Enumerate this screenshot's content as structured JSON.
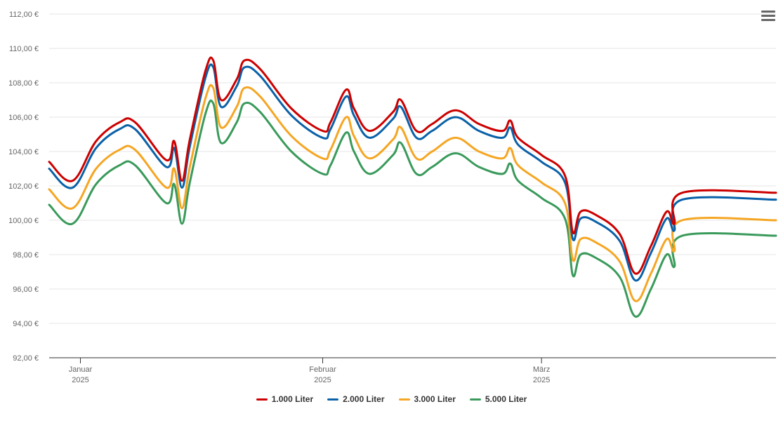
{
  "menu": {
    "icon": "hamburger-menu-icon"
  },
  "chart_data": {
    "type": "line",
    "title": "",
    "xlabel": "",
    "ylabel": "",
    "ylim": [
      92,
      112
    ],
    "y_ticks": [
      "92,00 €",
      "94,00 €",
      "96,00 €",
      "98,00 €",
      "100,00 €",
      "102,00 €",
      "104,00 €",
      "106,00 €",
      "108,00 €",
      "110,00 €",
      "112,00 €"
    ],
    "x_range": [
      "2024-12-28",
      "2025-03-31"
    ],
    "x_ticks": [
      {
        "date": "2025-01-01",
        "label": "Januar",
        "year": "2025"
      },
      {
        "date": "2025-02-01",
        "label": "Februar",
        "year": "2025"
      },
      {
        "date": "2025-03-01",
        "label": "März",
        "year": "2025"
      }
    ],
    "grid": true,
    "legend_position": "bottom-center",
    "series": [
      {
        "name": "1.000 Liter",
        "color": "#cc0000",
        "values": [
          [
            "2024-12-28",
            103.4
          ],
          [
            "2024-12-31",
            102.3
          ],
          [
            "2025-01-03",
            104.6
          ],
          [
            "2025-01-06",
            105.7
          ],
          [
            "2025-01-08",
            105.7
          ],
          [
            "2025-01-12",
            103.5
          ],
          [
            "2025-01-13",
            104.6
          ],
          [
            "2025-01-14",
            102.3
          ],
          [
            "2025-01-15",
            104.7
          ],
          [
            "2025-01-17",
            108.7
          ],
          [
            "2025-01-18",
            109.3
          ],
          [
            "2025-01-19",
            107.0
          ],
          [
            "2025-01-21",
            108.2
          ],
          [
            "2025-01-22",
            109.3
          ],
          [
            "2025-01-24",
            108.8
          ],
          [
            "2025-01-28",
            106.5
          ],
          [
            "2025-02-01",
            105.2
          ],
          [
            "2025-02-02",
            105.7
          ],
          [
            "2025-02-04",
            107.6
          ],
          [
            "2025-02-05",
            106.5
          ],
          [
            "2025-02-07",
            105.2
          ],
          [
            "2025-02-10",
            106.3
          ],
          [
            "2025-02-11",
            107.0
          ],
          [
            "2025-02-13",
            105.2
          ],
          [
            "2025-02-15",
            105.6
          ],
          [
            "2025-02-18",
            106.4
          ],
          [
            "2025-02-21",
            105.6
          ],
          [
            "2025-02-24",
            105.2
          ],
          [
            "2025-02-25",
            105.8
          ],
          [
            "2025-02-26",
            104.8
          ],
          [
            "2025-03-01",
            103.8
          ],
          [
            "2025-03-04",
            102.6
          ],
          [
            "2025-03-05",
            99.3
          ],
          [
            "2025-03-06",
            100.5
          ],
          [
            "2025-03-08",
            100.3
          ],
          [
            "2025-03-11",
            99.2
          ],
          [
            "2025-03-13",
            96.9
          ],
          [
            "2025-03-15",
            98.5
          ],
          [
            "2025-03-17",
            100.5
          ],
          [
            "2025-03-18",
            99.8
          ],
          [
            "2025-03-19",
            101.6
          ],
          [
            "2025-03-31",
            101.6
          ]
        ]
      },
      {
        "name": "2.000 Liter",
        "color": "#0a61a8",
        "values": [
          [
            "2024-12-28",
            103.0
          ],
          [
            "2024-12-31",
            101.9
          ],
          [
            "2025-01-03",
            104.2
          ],
          [
            "2025-01-06",
            105.3
          ],
          [
            "2025-01-08",
            105.3
          ],
          [
            "2025-01-12",
            103.1
          ],
          [
            "2025-01-13",
            104.2
          ],
          [
            "2025-01-14",
            101.9
          ],
          [
            "2025-01-15",
            104.3
          ],
          [
            "2025-01-17",
            108.3
          ],
          [
            "2025-01-18",
            108.9
          ],
          [
            "2025-01-19",
            106.6
          ],
          [
            "2025-01-21",
            107.8
          ],
          [
            "2025-01-22",
            108.9
          ],
          [
            "2025-01-24",
            108.4
          ],
          [
            "2025-01-28",
            106.1
          ],
          [
            "2025-02-01",
            104.8
          ],
          [
            "2025-02-02",
            105.3
          ],
          [
            "2025-02-04",
            107.2
          ],
          [
            "2025-02-05",
            106.1
          ],
          [
            "2025-02-07",
            104.8
          ],
          [
            "2025-02-10",
            105.9
          ],
          [
            "2025-02-11",
            106.6
          ],
          [
            "2025-02-13",
            104.8
          ],
          [
            "2025-02-15",
            105.2
          ],
          [
            "2025-02-18",
            106.0
          ],
          [
            "2025-02-21",
            105.2
          ],
          [
            "2025-02-24",
            104.8
          ],
          [
            "2025-02-25",
            105.4
          ],
          [
            "2025-02-26",
            104.4
          ],
          [
            "2025-03-01",
            103.4
          ],
          [
            "2025-03-04",
            102.2
          ],
          [
            "2025-03-05",
            98.9
          ],
          [
            "2025-03-06",
            100.1
          ],
          [
            "2025-03-08",
            99.9
          ],
          [
            "2025-03-11",
            98.8
          ],
          [
            "2025-03-13",
            96.5
          ],
          [
            "2025-03-15",
            98.1
          ],
          [
            "2025-03-17",
            100.1
          ],
          [
            "2025-03-18",
            99.4
          ],
          [
            "2025-03-19",
            101.2
          ],
          [
            "2025-03-31",
            101.2
          ]
        ]
      },
      {
        "name": "3.000 Liter",
        "color": "#f5a623",
        "values": [
          [
            "2024-12-28",
            101.8
          ],
          [
            "2024-12-31",
            100.7
          ],
          [
            "2025-01-03",
            103.0
          ],
          [
            "2025-01-06",
            104.1
          ],
          [
            "2025-01-08",
            104.1
          ],
          [
            "2025-01-12",
            101.9
          ],
          [
            "2025-01-13",
            103.0
          ],
          [
            "2025-01-14",
            100.7
          ],
          [
            "2025-01-15",
            103.1
          ],
          [
            "2025-01-17",
            107.1
          ],
          [
            "2025-01-18",
            107.7
          ],
          [
            "2025-01-19",
            105.4
          ],
          [
            "2025-01-21",
            106.6
          ],
          [
            "2025-01-22",
            107.7
          ],
          [
            "2025-01-24",
            107.2
          ],
          [
            "2025-01-28",
            104.9
          ],
          [
            "2025-02-01",
            103.6
          ],
          [
            "2025-02-02",
            104.1
          ],
          [
            "2025-02-04",
            106.0
          ],
          [
            "2025-02-05",
            104.9
          ],
          [
            "2025-02-07",
            103.6
          ],
          [
            "2025-02-10",
            104.7
          ],
          [
            "2025-02-11",
            105.4
          ],
          [
            "2025-02-13",
            103.6
          ],
          [
            "2025-02-15",
            104.0
          ],
          [
            "2025-02-18",
            104.8
          ],
          [
            "2025-02-21",
            104.0
          ],
          [
            "2025-02-24",
            103.6
          ],
          [
            "2025-02-25",
            104.2
          ],
          [
            "2025-02-26",
            103.2
          ],
          [
            "2025-03-01",
            102.2
          ],
          [
            "2025-03-04",
            101.0
          ],
          [
            "2025-03-05",
            97.7
          ],
          [
            "2025-03-06",
            98.9
          ],
          [
            "2025-03-08",
            98.7
          ],
          [
            "2025-03-11",
            97.6
          ],
          [
            "2025-03-13",
            95.3
          ],
          [
            "2025-03-15",
            96.9
          ],
          [
            "2025-03-17",
            98.9
          ],
          [
            "2025-03-18",
            98.2
          ],
          [
            "2025-03-19",
            100.0
          ],
          [
            "2025-03-31",
            100.0
          ]
        ]
      },
      {
        "name": "5.000 Liter",
        "color": "#3a9a5b",
        "values": [
          [
            "2024-12-28",
            100.9
          ],
          [
            "2024-12-31",
            99.8
          ],
          [
            "2025-01-03",
            102.1
          ],
          [
            "2025-01-06",
            103.2
          ],
          [
            "2025-01-08",
            103.2
          ],
          [
            "2025-01-12",
            101.0
          ],
          [
            "2025-01-13",
            102.1
          ],
          [
            "2025-01-14",
            99.8
          ],
          [
            "2025-01-15",
            102.2
          ],
          [
            "2025-01-17",
            106.2
          ],
          [
            "2025-01-18",
            106.8
          ],
          [
            "2025-01-19",
            104.5
          ],
          [
            "2025-01-21",
            105.7
          ],
          [
            "2025-01-22",
            106.8
          ],
          [
            "2025-01-24",
            106.3
          ],
          [
            "2025-01-28",
            104.0
          ],
          [
            "2025-02-01",
            102.7
          ],
          [
            "2025-02-02",
            103.2
          ],
          [
            "2025-02-04",
            105.1
          ],
          [
            "2025-02-05",
            104.0
          ],
          [
            "2025-02-07",
            102.7
          ],
          [
            "2025-02-10",
            103.8
          ],
          [
            "2025-02-11",
            104.5
          ],
          [
            "2025-02-13",
            102.7
          ],
          [
            "2025-02-15",
            103.1
          ],
          [
            "2025-02-18",
            103.9
          ],
          [
            "2025-02-21",
            103.1
          ],
          [
            "2025-02-24",
            102.7
          ],
          [
            "2025-02-25",
            103.3
          ],
          [
            "2025-02-26",
            102.3
          ],
          [
            "2025-03-01",
            101.3
          ],
          [
            "2025-03-04",
            100.1
          ],
          [
            "2025-03-05",
            96.8
          ],
          [
            "2025-03-06",
            98.0
          ],
          [
            "2025-03-08",
            97.8
          ],
          [
            "2025-03-11",
            96.7
          ],
          [
            "2025-03-13",
            94.4
          ],
          [
            "2025-03-15",
            96.0
          ],
          [
            "2025-03-17",
            98.0
          ],
          [
            "2025-03-18",
            97.3
          ],
          [
            "2025-03-19",
            99.1
          ],
          [
            "2025-03-31",
            99.1
          ]
        ]
      }
    ]
  }
}
